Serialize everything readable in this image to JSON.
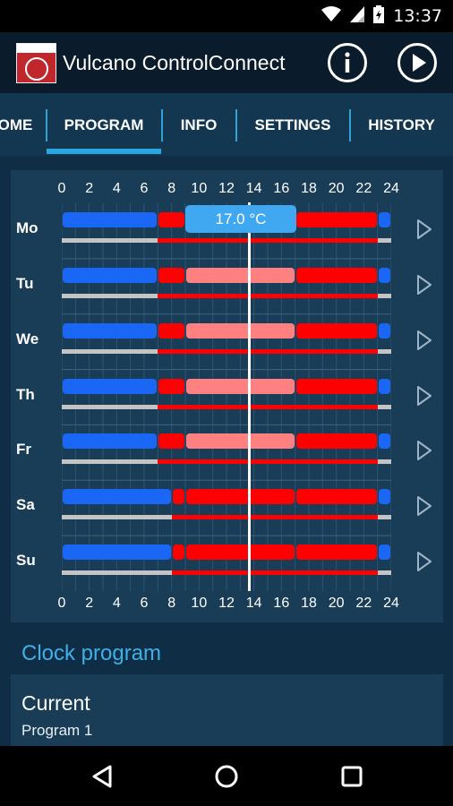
{
  "status": {
    "time": "13:37"
  },
  "app": {
    "title": "Vulcano ControlConnect"
  },
  "tabs": [
    {
      "label": "OME"
    },
    {
      "label": "PROGRAM"
    },
    {
      "label": "INFO"
    },
    {
      "label": "SETTINGS"
    },
    {
      "label": "HISTORY"
    }
  ],
  "schedule": {
    "hours": [
      "0",
      "2",
      "4",
      "6",
      "8",
      "10",
      "12",
      "14",
      "16",
      "18",
      "20",
      "22",
      "24"
    ],
    "tooltip": "17.0 °C",
    "days": [
      {
        "label": "Mo"
      },
      {
        "label": "Tu"
      },
      {
        "label": "We"
      },
      {
        "label": "Th"
      },
      {
        "label": "Fr"
      },
      {
        "label": "Sa"
      },
      {
        "label": "Su"
      }
    ]
  },
  "clock_program": {
    "section_title": "Clock program",
    "current_label": "Current",
    "current_value": "Program 1"
  },
  "colors": {
    "cold": "#1a66f5",
    "comfort": "#ff0000",
    "eco": "#ff8080",
    "accent": "#29a5e0"
  }
}
